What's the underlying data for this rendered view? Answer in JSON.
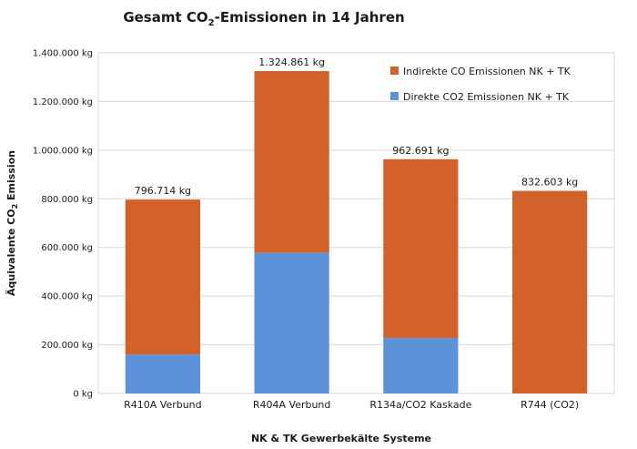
{
  "chart_data": {
    "type": "bar",
    "stacked": true,
    "title_main": "Gesamt CO",
    "title_sub": "2",
    "title_tail": "-Emissionen in 14 Jahren",
    "xlabel": "NK & TK Gewerbekälte Systeme",
    "ylabel_main": "Äquivalente CO",
    "ylabel_sub": "2",
    "ylabel_tail": " Emission",
    "ylim": [
      0,
      1400000
    ],
    "ytick_step": 200000,
    "ytick_labels": [
      "0 kg",
      "200.000 kg",
      "400.000 kg",
      "600.000 kg",
      "800.000 kg",
      "1.000.000 kg",
      "1.200.000 kg",
      "1.400.000 kg"
    ],
    "categories": [
      "R410A Verbund",
      "R404A Verbund",
      "R134a/CO2 Kaskade",
      "R744 (CO2)"
    ],
    "series": [
      {
        "name": "Direkte CO2 Emissionen NK + TK",
        "color": "#5b92d9",
        "values": [
          160000,
          578000,
          228000,
          0
        ]
      },
      {
        "name": "Indirekte CO Emissionen NK + TK",
        "color": "#d2622a",
        "values": [
          636714,
          746861,
          734691,
          832603
        ]
      }
    ],
    "total_labels": [
      "796.714 kg",
      "1.324.861 kg",
      "962.691 kg",
      "832.603 kg"
    ],
    "grid": true,
    "legend_position": "top-right"
  }
}
